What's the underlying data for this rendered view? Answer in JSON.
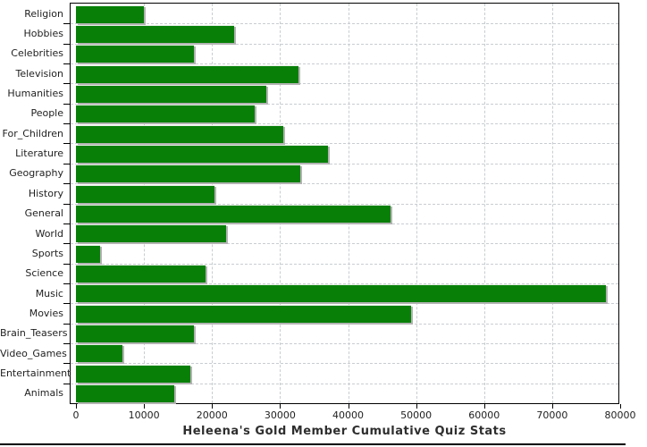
{
  "chart_data": {
    "type": "bar",
    "orientation": "horizontal",
    "title": "Heleena's Gold Member Cumulative Quiz Stats",
    "categories": [
      "Religion",
      "Hobbies",
      "Celebrities",
      "Television",
      "Humanities",
      "People",
      "For_Children",
      "Literature",
      "Geography",
      "History",
      "General",
      "World",
      "Sports",
      "Science",
      "Music",
      "Movies",
      "Brain_Teasers",
      "Video_Games",
      "Entertainment",
      "Animals"
    ],
    "values": [
      10000,
      23300,
      17300,
      32700,
      28000,
      26300,
      30500,
      37000,
      33000,
      20300,
      46200,
      22100,
      3500,
      19000,
      77900,
      49200,
      17400,
      6800,
      16800,
      14400
    ],
    "xlim": [
      0,
      80000
    ],
    "xticks": [
      0,
      10000,
      20000,
      30000,
      40000,
      50000,
      60000,
      70000,
      80000
    ],
    "xtick_labels": [
      "0",
      "10000",
      "20000",
      "30000",
      "40000",
      "50000",
      "60000",
      "70000",
      "80000"
    ],
    "grid": "dashed-both-axes",
    "legend": "none",
    "bar_color": "#088008",
    "bar_shadow_color": "#b3b3b3",
    "grid_color": "#c9cdd1",
    "axis_color": "#000000",
    "text_color": "#1f1f1f"
  }
}
